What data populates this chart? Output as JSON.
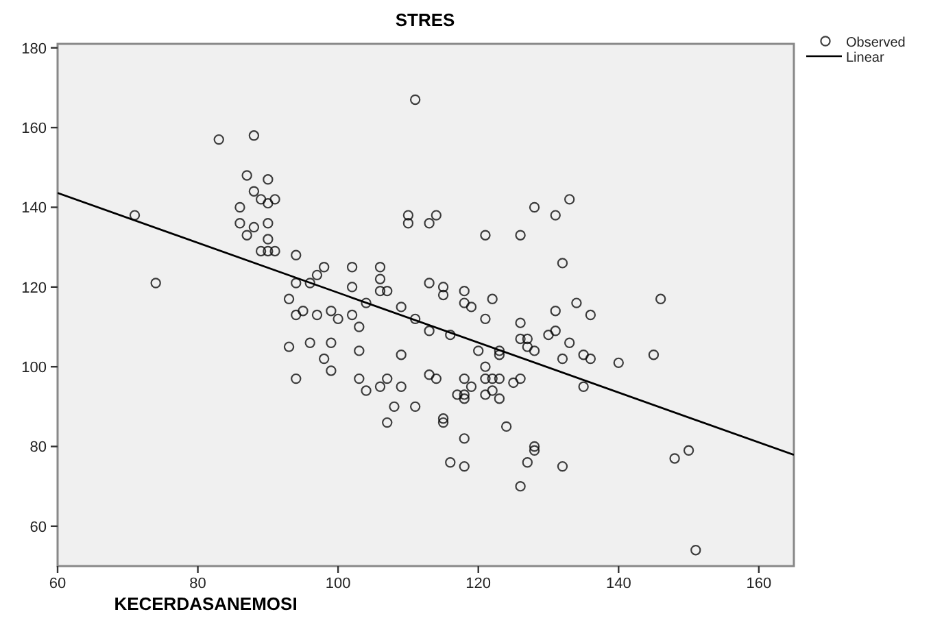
{
  "chart_data": {
    "type": "scatter",
    "title": "STRES",
    "xlabel": "KECERDASANEMOSI",
    "xlim": [
      60,
      165
    ],
    "ylim": [
      50,
      181
    ],
    "xticks": [
      60,
      80,
      100,
      120,
      140,
      160
    ],
    "yticks": [
      60,
      80,
      100,
      120,
      140,
      160,
      180
    ],
    "grid": false,
    "legend": "top right",
    "series": [
      {
        "name": "Observed",
        "marker": "circle",
        "color": "#000000",
        "x": [
          71,
          74,
          83,
          88,
          87,
          90,
          88,
          89,
          90,
          91,
          86,
          86,
          88,
          90,
          87,
          90,
          89,
          90,
          91,
          94,
          98,
          97,
          94,
          96,
          93,
          102,
          106,
          106,
          102,
          106,
          107,
          104,
          110,
          110,
          114,
          113,
          121,
          113,
          115,
          115,
          118,
          118,
          119,
          121,
          122,
          109,
          111,
          113,
          116,
          120,
          121,
          121,
          122,
          119,
          118,
          117,
          118,
          118,
          121,
          113,
          114,
          115,
          115,
          111,
          108,
          107,
          109,
          109,
          107,
          106,
          104,
          103,
          103,
          103,
          102,
          100,
          99,
          97,
          95,
          94,
          93,
          96,
          99,
          98,
          94,
          99,
          118,
          116,
          118,
          124,
          128,
          128,
          127,
          132,
          126,
          123,
          123,
          123,
          125,
          126,
          123,
          122,
          127,
          128,
          132,
          135,
          136,
          135,
          128,
          133,
          131,
          126,
          132,
          146,
          134,
          131,
          136,
          126,
          131,
          130,
          126,
          127,
          133,
          140,
          145,
          148,
          150,
          151,
          111
        ],
        "values": [
          138,
          121,
          157,
          158,
          148,
          147,
          144,
          142,
          141,
          142,
          140,
          136,
          135,
          136,
          133,
          132,
          129,
          129,
          129,
          128,
          125,
          123,
          121,
          121,
          117,
          125,
          125,
          122,
          120,
          119,
          119,
          116,
          138,
          136,
          138,
          136,
          133,
          121,
          120,
          118,
          119,
          116,
          115,
          112,
          117,
          115,
          112,
          109,
          108,
          104,
          100,
          97,
          97,
          95,
          97,
          93,
          93,
          92,
          93,
          98,
          97,
          87,
          86,
          90,
          90,
          86,
          95,
          103,
          97,
          95,
          94,
          97,
          104,
          110,
          113,
          112,
          114,
          113,
          114,
          113,
          105,
          106,
          106,
          102,
          97,
          99,
          82,
          76,
          75,
          85,
          80,
          79,
          76,
          75,
          70,
          104,
          103,
          97,
          96,
          97,
          92,
          94,
          105,
          104,
          102,
          103,
          102,
          95,
          140,
          142,
          138,
          133,
          126,
          117,
          116,
          114,
          113,
          111,
          109,
          108,
          107,
          107,
          106,
          101,
          103,
          77,
          79,
          54,
          167
        ]
      },
      {
        "name": "Linear",
        "type": "line",
        "color": "#000000",
        "x": [
          60,
          165
        ],
        "values": [
          143.6,
          77.9
        ]
      }
    ]
  }
}
